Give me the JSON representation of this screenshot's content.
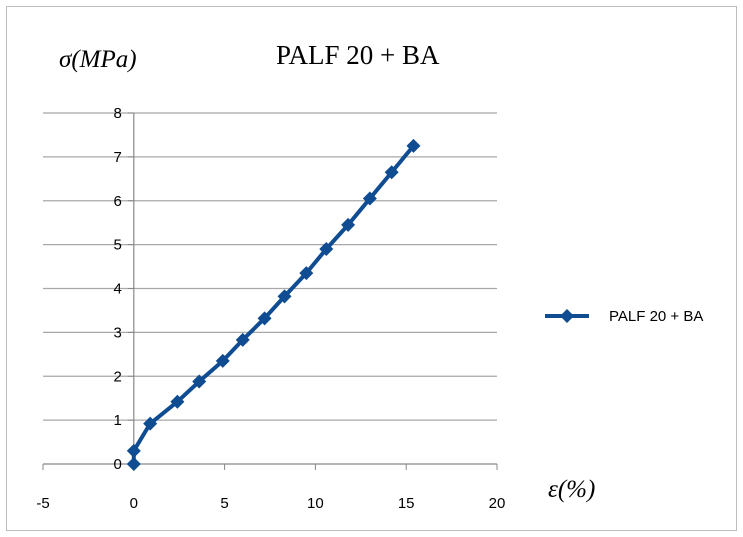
{
  "chart_data": {
    "type": "scatter",
    "title": "PALF 20 + BA",
    "xlabel": "ε(%)",
    "ylabel": "σ(MPa)",
    "xlim": [
      -5,
      20
    ],
    "ylim": [
      0,
      8
    ],
    "xticks": [
      -5,
      0,
      5,
      10,
      15,
      20
    ],
    "yticks": [
      0,
      1,
      2,
      3,
      4,
      5,
      6,
      7,
      8
    ],
    "grid": "horizontal",
    "legend_position": "right",
    "series": [
      {
        "name": "PALF 20 + BA",
        "color": "#0f4c92",
        "marker": "diamond",
        "x": [
          0,
          0,
          0.9,
          2.4,
          3.6,
          4.9,
          6.0,
          7.2,
          8.3,
          9.5,
          10.6,
          11.8,
          13.0,
          14.2,
          15.4
        ],
        "y": [
          0,
          0.3,
          0.92,
          1.42,
          1.88,
          2.35,
          2.83,
          3.32,
          3.82,
          4.35,
          4.9,
          5.45,
          6.05,
          6.65,
          7.25
        ]
      }
    ]
  }
}
